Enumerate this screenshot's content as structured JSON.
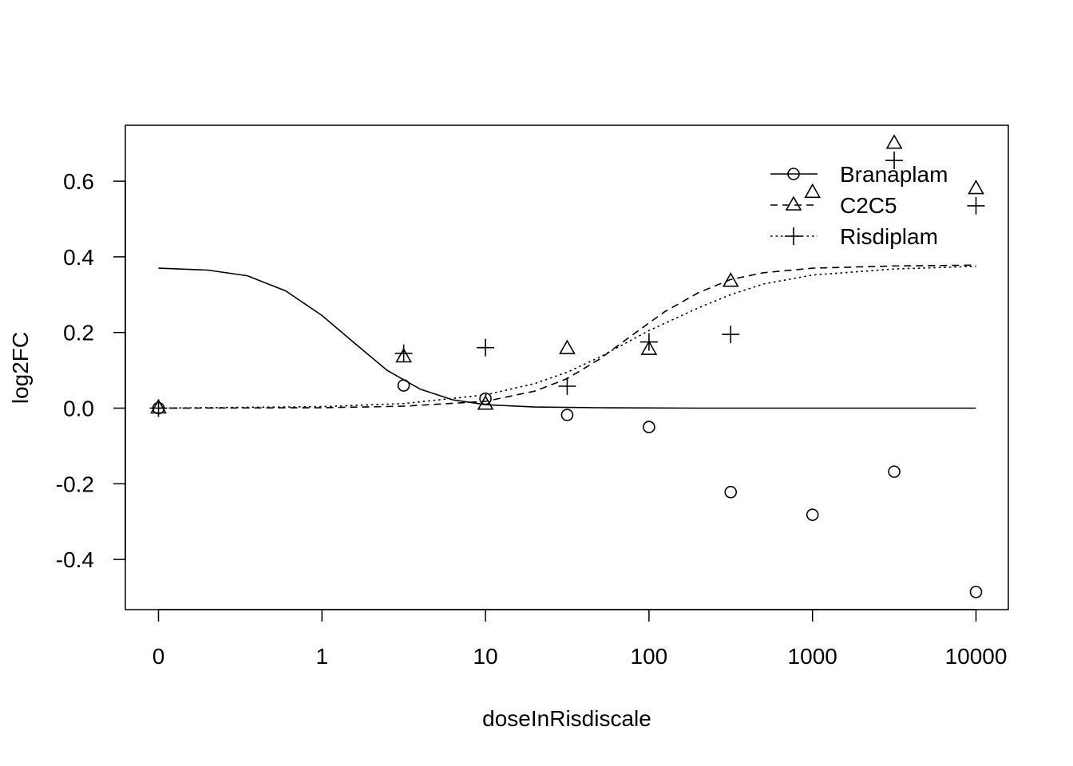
{
  "chart_data": {
    "type": "scatter",
    "title": "",
    "xlabel": "doseInRisdiscale",
    "ylabel": "log2FC",
    "x_scale": "log10 (0 plotted at 0.1)",
    "x_ticks": [
      "0",
      "1",
      "10",
      "100",
      "1000",
      "10000"
    ],
    "y_ticks": [
      "-0.4",
      "-0.2",
      "0.0",
      "0.2",
      "0.4",
      "0.6"
    ],
    "xlim": [
      0.08,
      15000
    ],
    "ylim": [
      -0.53,
      0.75
    ],
    "grid": false,
    "legend_position": "top-right",
    "series": [
      {
        "name": "Branaplam",
        "marker": "circle",
        "line_style": "solid",
        "points": [
          {
            "x": 0,
            "y": 0.0
          },
          {
            "x": 3.16,
            "y": 0.06
          },
          {
            "x": 10,
            "y": 0.025
          },
          {
            "x": 31.6,
            "y": -0.018
          },
          {
            "x": 100,
            "y": -0.05
          },
          {
            "x": 316,
            "y": -0.222
          },
          {
            "x": 1000,
            "y": -0.282
          },
          {
            "x": 3160,
            "y": -0.168
          },
          {
            "x": 10000,
            "y": -0.486
          }
        ],
        "fit": [
          {
            "x": 0,
            "y": 0.37
          },
          {
            "x": 0.2,
            "y": 0.365
          },
          {
            "x": 0.35,
            "y": 0.35
          },
          {
            "x": 0.6,
            "y": 0.31
          },
          {
            "x": 1,
            "y": 0.245
          },
          {
            "x": 1.6,
            "y": 0.17
          },
          {
            "x": 2.5,
            "y": 0.1
          },
          {
            "x": 4,
            "y": 0.05
          },
          {
            "x": 6.3,
            "y": 0.022
          },
          {
            "x": 10,
            "y": 0.009
          },
          {
            "x": 20,
            "y": 0.003
          },
          {
            "x": 50,
            "y": 0.001
          },
          {
            "x": 200,
            "y": 0.0
          },
          {
            "x": 10000,
            "y": 0.0
          }
        ]
      },
      {
        "name": "C2C5",
        "marker": "triangle",
        "line_style": "dashed",
        "points": [
          {
            "x": 0,
            "y": 0.0
          },
          {
            "x": 3.16,
            "y": 0.135
          },
          {
            "x": 10,
            "y": 0.01
          },
          {
            "x": 31.6,
            "y": 0.157
          },
          {
            "x": 100,
            "y": 0.155
          },
          {
            "x": 316,
            "y": 0.335
          },
          {
            "x": 1000,
            "y": 0.57
          },
          {
            "x": 3160,
            "y": 0.7
          },
          {
            "x": 10000,
            "y": 0.58
          }
        ],
        "fit": [
          {
            "x": 0,
            "y": 0.0
          },
          {
            "x": 1,
            "y": 0.001
          },
          {
            "x": 3.16,
            "y": 0.005
          },
          {
            "x": 10,
            "y": 0.018
          },
          {
            "x": 20,
            "y": 0.045
          },
          {
            "x": 31.6,
            "y": 0.078
          },
          {
            "x": 50,
            "y": 0.13
          },
          {
            "x": 80,
            "y": 0.195
          },
          {
            "x": 125,
            "y": 0.255
          },
          {
            "x": 200,
            "y": 0.305
          },
          {
            "x": 316,
            "y": 0.34
          },
          {
            "x": 500,
            "y": 0.358
          },
          {
            "x": 1000,
            "y": 0.37
          },
          {
            "x": 3160,
            "y": 0.376
          },
          {
            "x": 10000,
            "y": 0.378
          }
        ]
      },
      {
        "name": "Risdiplam",
        "marker": "plus",
        "line_style": "dotted",
        "points": [
          {
            "x": 0,
            "y": 0.0
          },
          {
            "x": 3.16,
            "y": 0.145
          },
          {
            "x": 10,
            "y": 0.16
          },
          {
            "x": 31.6,
            "y": 0.058
          },
          {
            "x": 100,
            "y": 0.175
          },
          {
            "x": 316,
            "y": 0.195
          },
          {
            "x": 3160,
            "y": 0.655
          },
          {
            "x": 10000,
            "y": 0.535
          }
        ],
        "fit": [
          {
            "x": 0,
            "y": 0.0
          },
          {
            "x": 1,
            "y": 0.004
          },
          {
            "x": 3.16,
            "y": 0.012
          },
          {
            "x": 10,
            "y": 0.035
          },
          {
            "x": 20,
            "y": 0.065
          },
          {
            "x": 31.6,
            "y": 0.095
          },
          {
            "x": 50,
            "y": 0.135
          },
          {
            "x": 100,
            "y": 0.205
          },
          {
            "x": 200,
            "y": 0.265
          },
          {
            "x": 316,
            "y": 0.3
          },
          {
            "x": 500,
            "y": 0.328
          },
          {
            "x": 1000,
            "y": 0.352
          },
          {
            "x": 3160,
            "y": 0.368
          },
          {
            "x": 10000,
            "y": 0.375
          }
        ]
      }
    ]
  }
}
